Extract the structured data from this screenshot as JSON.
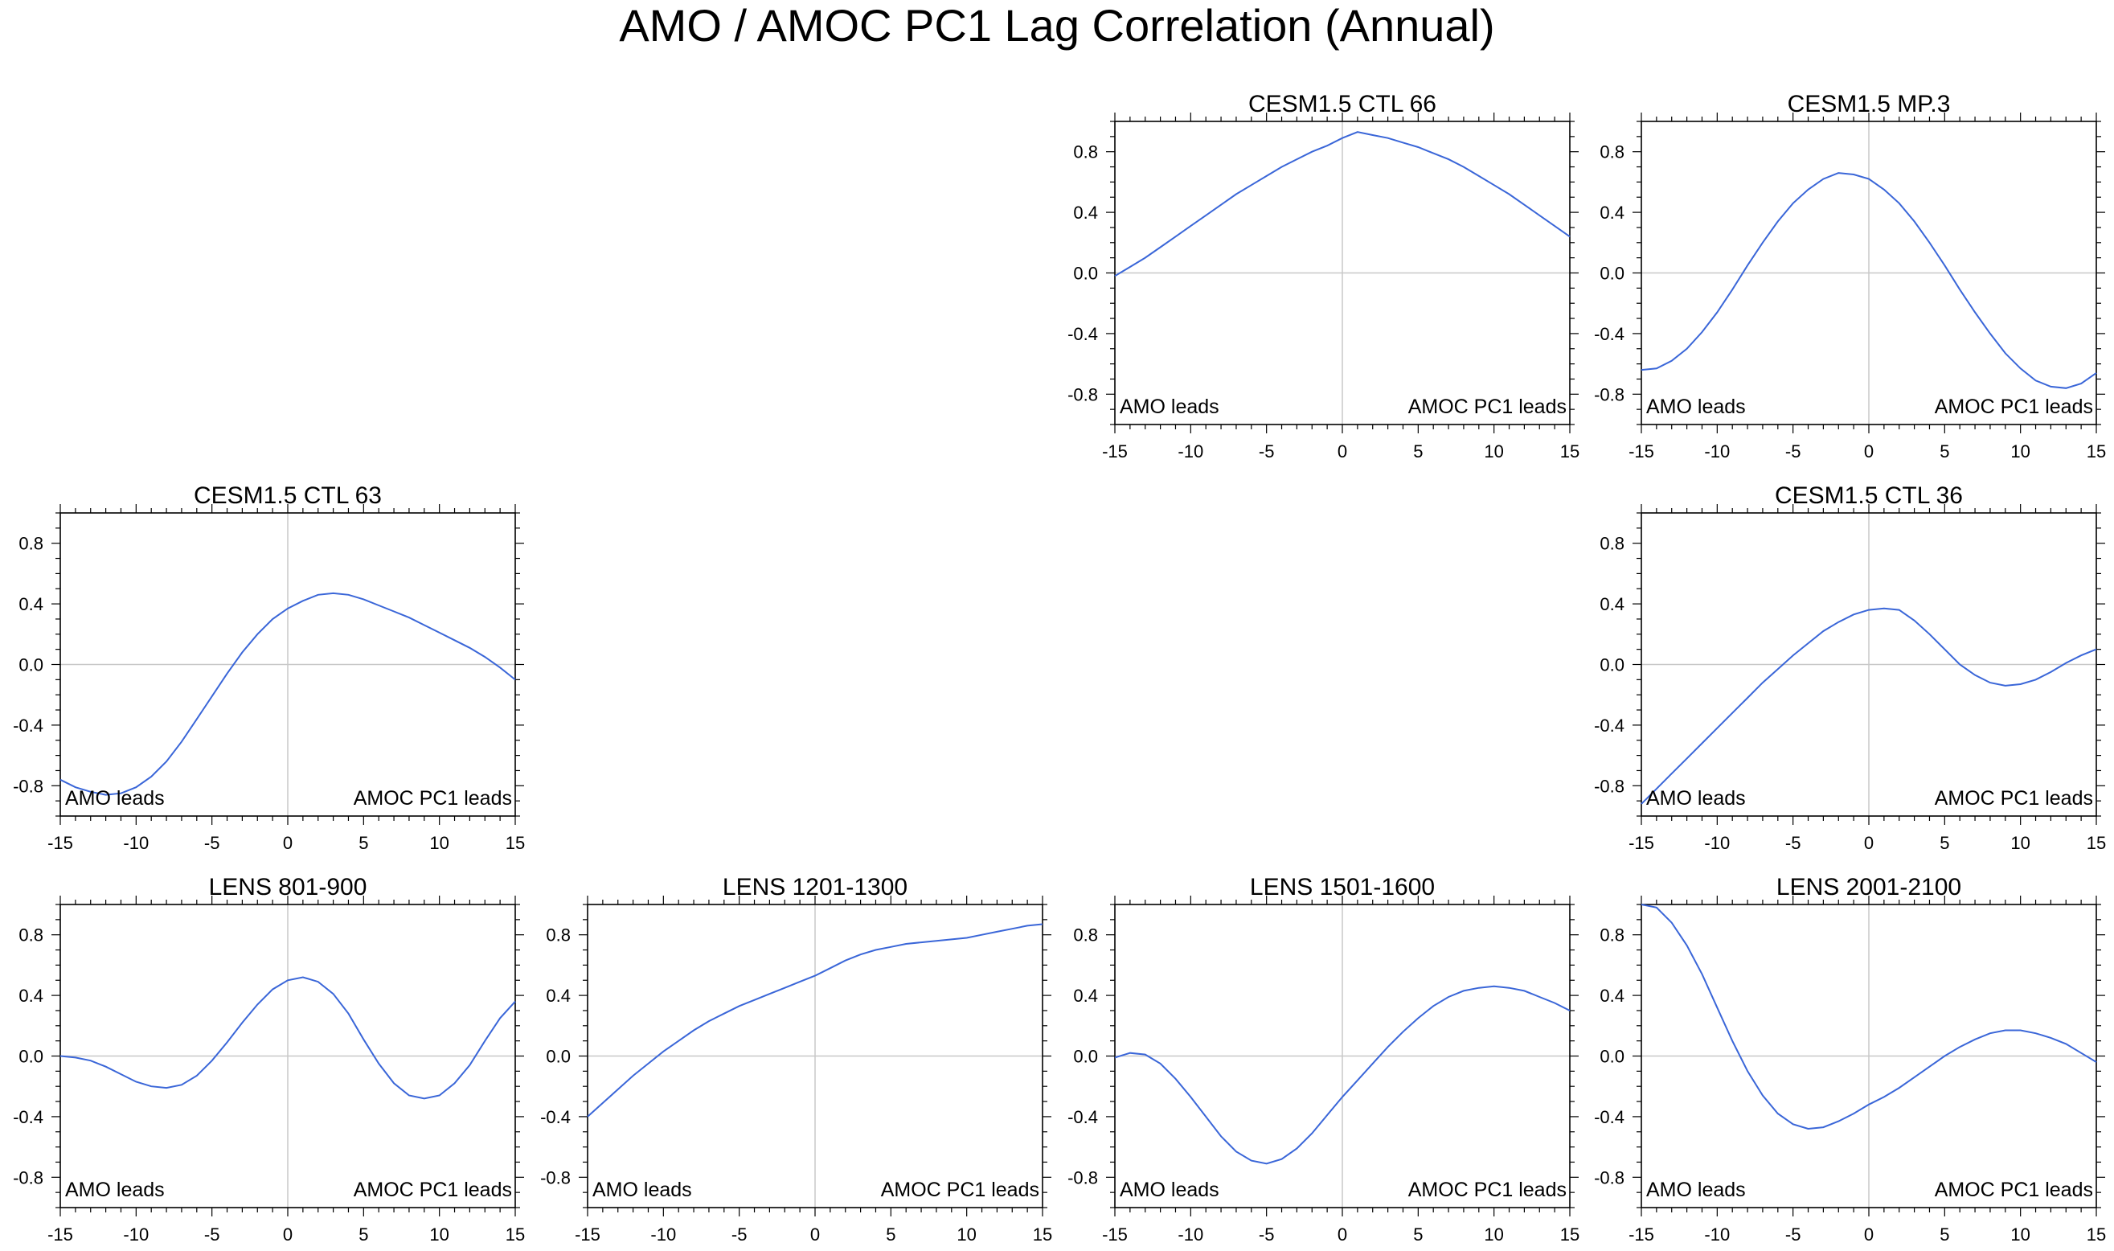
{
  "title": "AMO / AMOC PC1 Lag Correlation (Annual)",
  "chart_data": [
    {
      "type": "line",
      "title": "CESM1.5 CTL 66",
      "x": [
        -15,
        -14,
        -13,
        -12,
        -11,
        -10,
        -9,
        -8,
        -7,
        -6,
        -5,
        -4,
        -3,
        -2,
        -1,
        0,
        1,
        2,
        3,
        4,
        5,
        6,
        7,
        8,
        9,
        10,
        11,
        12,
        13,
        14,
        15
      ],
      "values": [
        -0.02,
        0.04,
        0.1,
        0.17,
        0.24,
        0.31,
        0.38,
        0.45,
        0.52,
        0.58,
        0.64,
        0.7,
        0.75,
        0.8,
        0.84,
        0.89,
        0.93,
        0.91,
        0.89,
        0.86,
        0.83,
        0.79,
        0.75,
        0.7,
        0.64,
        0.58,
        0.52,
        0.45,
        0.38,
        0.31,
        0.24
      ],
      "xlabel": "",
      "ylabel": "",
      "xlim": [
        -15,
        15
      ],
      "ylim": [
        -1.0,
        1.0
      ],
      "xticks": [
        "-15",
        "-10",
        "-5",
        "0",
        "5",
        "10",
        "15"
      ],
      "yticks": [
        "0.8",
        "0.4",
        "0.0",
        "-0.4",
        "-0.8"
      ],
      "left_annotation": "AMO leads",
      "right_annotation": "AMOC PC1 leads"
    },
    {
      "type": "line",
      "title": "CESM1.5 MP.3",
      "x": [
        -15,
        -14,
        -13,
        -12,
        -11,
        -10,
        -9,
        -8,
        -7,
        -6,
        -5,
        -4,
        -3,
        -2,
        -1,
        0,
        1,
        2,
        3,
        4,
        5,
        6,
        7,
        8,
        9,
        10,
        11,
        12,
        13,
        14,
        15
      ],
      "values": [
        -0.64,
        -0.63,
        -0.58,
        -0.5,
        -0.39,
        -0.26,
        -0.11,
        0.05,
        0.2,
        0.34,
        0.46,
        0.55,
        0.62,
        0.66,
        0.65,
        0.62,
        0.55,
        0.46,
        0.34,
        0.2,
        0.05,
        -0.11,
        -0.26,
        -0.4,
        -0.53,
        -0.63,
        -0.71,
        -0.75,
        -0.76,
        -0.73,
        -0.66
      ],
      "xlabel": "",
      "ylabel": "",
      "xlim": [
        -15,
        15
      ],
      "ylim": [
        -1.0,
        1.0
      ],
      "xticks": [
        "-15",
        "-10",
        "-5",
        "0",
        "5",
        "10",
        "15"
      ],
      "yticks": [
        "0.8",
        "0.4",
        "0.0",
        "-0.4",
        "-0.8"
      ],
      "left_annotation": "AMO leads",
      "right_annotation": "AMOC PC1 leads"
    },
    {
      "type": "line",
      "title": "CESM1.5 CTL 63",
      "x": [
        -15,
        -14,
        -13,
        -12,
        -11,
        -10,
        -9,
        -8,
        -7,
        -6,
        -5,
        -4,
        -3,
        -2,
        -1,
        0,
        1,
        2,
        3,
        4,
        5,
        6,
        7,
        8,
        9,
        10,
        11,
        12,
        13,
        14,
        15
      ],
      "values": [
        -0.76,
        -0.81,
        -0.84,
        -0.86,
        -0.85,
        -0.81,
        -0.74,
        -0.64,
        -0.51,
        -0.36,
        -0.21,
        -0.06,
        0.08,
        0.2,
        0.3,
        0.37,
        0.42,
        0.46,
        0.47,
        0.46,
        0.43,
        0.39,
        0.35,
        0.31,
        0.26,
        0.21,
        0.16,
        0.11,
        0.05,
        -0.02,
        -0.1
      ],
      "xlabel": "",
      "ylabel": "",
      "xlim": [
        -15,
        15
      ],
      "ylim": [
        -1.0,
        1.0
      ],
      "xticks": [
        "-15",
        "-10",
        "-5",
        "0",
        "5",
        "10",
        "15"
      ],
      "yticks": [
        "0.8",
        "0.4",
        "0.0",
        "-0.4",
        "-0.8"
      ],
      "left_annotation": "AMO leads",
      "right_annotation": "AMOC PC1 leads"
    },
    {
      "type": "line",
      "title": "CESM1.5 CTL 36",
      "x": [
        -15,
        -14,
        -13,
        -12,
        -11,
        -10,
        -9,
        -8,
        -7,
        -6,
        -5,
        -4,
        -3,
        -2,
        -1,
        0,
        1,
        2,
        3,
        4,
        5,
        6,
        7,
        8,
        9,
        10,
        11,
        12,
        13,
        14,
        15
      ],
      "values": [
        -0.92,
        -0.82,
        -0.72,
        -0.62,
        -0.52,
        -0.42,
        -0.32,
        -0.22,
        -0.12,
        -0.03,
        0.06,
        0.14,
        0.22,
        0.28,
        0.33,
        0.36,
        0.37,
        0.36,
        0.29,
        0.2,
        0.1,
        0.0,
        -0.07,
        -0.12,
        -0.14,
        -0.13,
        -0.1,
        -0.05,
        0.01,
        0.06,
        0.1
      ],
      "xlabel": "",
      "ylabel": "",
      "xlim": [
        -15,
        15
      ],
      "ylim": [
        -1.0,
        1.0
      ],
      "xticks": [
        "-15",
        "-10",
        "-5",
        "0",
        "5",
        "10",
        "15"
      ],
      "yticks": [
        "0.8",
        "0.4",
        "0.0",
        "-0.4",
        "-0.8"
      ],
      "left_annotation": "AMO leads",
      "right_annotation": "AMOC PC1 leads"
    },
    {
      "type": "line",
      "title": "LENS 801-900",
      "x": [
        -15,
        -14,
        -13,
        -12,
        -11,
        -10,
        -9,
        -8,
        -7,
        -6,
        -5,
        -4,
        -3,
        -2,
        -1,
        0,
        1,
        2,
        3,
        4,
        5,
        6,
        7,
        8,
        9,
        10,
        11,
        12,
        13,
        14,
        15
      ],
      "values": [
        0.0,
        -0.01,
        -0.03,
        -0.07,
        -0.12,
        -0.17,
        -0.2,
        -0.21,
        -0.19,
        -0.13,
        -0.03,
        0.09,
        0.22,
        0.34,
        0.44,
        0.5,
        0.52,
        0.49,
        0.41,
        0.28,
        0.11,
        -0.05,
        -0.18,
        -0.26,
        -0.28,
        -0.26,
        -0.18,
        -0.06,
        0.1,
        0.25,
        0.36
      ],
      "xlabel": "",
      "ylabel": "",
      "xlim": [
        -15,
        15
      ],
      "ylim": [
        -1.0,
        1.0
      ],
      "xticks": [
        "-15",
        "-10",
        "-5",
        "0",
        "5",
        "10",
        "15"
      ],
      "yticks": [
        "0.8",
        "0.4",
        "0.0",
        "-0.4",
        "-0.8"
      ],
      "left_annotation": "AMO leads",
      "right_annotation": "AMOC PC1 leads"
    },
    {
      "type": "line",
      "title": "LENS 1201-1300",
      "x": [
        -15,
        -14,
        -13,
        -12,
        -11,
        -10,
        -9,
        -8,
        -7,
        -6,
        -5,
        -4,
        -3,
        -2,
        -1,
        0,
        1,
        2,
        3,
        4,
        5,
        6,
        7,
        8,
        9,
        10,
        11,
        12,
        13,
        14,
        15
      ],
      "values": [
        -0.4,
        -0.31,
        -0.22,
        -0.13,
        -0.05,
        0.03,
        0.1,
        0.17,
        0.23,
        0.28,
        0.33,
        0.37,
        0.41,
        0.45,
        0.49,
        0.53,
        0.58,
        0.63,
        0.67,
        0.7,
        0.72,
        0.74,
        0.75,
        0.76,
        0.77,
        0.78,
        0.8,
        0.82,
        0.84,
        0.86,
        0.87
      ],
      "xlabel": "",
      "ylabel": "",
      "xlim": [
        -15,
        15
      ],
      "ylim": [
        -1.0,
        1.0
      ],
      "xticks": [
        "-15",
        "-10",
        "-5",
        "0",
        "5",
        "10",
        "15"
      ],
      "yticks": [
        "0.8",
        "0.4",
        "0.0",
        "-0.4",
        "-0.8"
      ],
      "left_annotation": "AMO leads",
      "right_annotation": "AMOC PC1 leads"
    },
    {
      "type": "line",
      "title": "LENS 1501-1600",
      "x": [
        -15,
        -14,
        -13,
        -12,
        -11,
        -10,
        -9,
        -8,
        -7,
        -6,
        -5,
        -4,
        -3,
        -2,
        -1,
        0,
        1,
        2,
        3,
        4,
        5,
        6,
        7,
        8,
        9,
        10,
        11,
        12,
        13,
        14,
        15
      ],
      "values": [
        -0.01,
        0.02,
        0.01,
        -0.05,
        -0.15,
        -0.27,
        -0.4,
        -0.53,
        -0.63,
        -0.69,
        -0.71,
        -0.68,
        -0.61,
        -0.51,
        -0.39,
        -0.27,
        -0.16,
        -0.05,
        0.06,
        0.16,
        0.25,
        0.33,
        0.39,
        0.43,
        0.45,
        0.46,
        0.45,
        0.43,
        0.39,
        0.35,
        0.3
      ],
      "xlabel": "",
      "ylabel": "",
      "xlim": [
        -15,
        15
      ],
      "ylim": [
        -1.0,
        1.0
      ],
      "xticks": [
        "-15",
        "-10",
        "-5",
        "0",
        "5",
        "10",
        "15"
      ],
      "yticks": [
        "0.8",
        "0.4",
        "0.0",
        "-0.4",
        "-0.8"
      ],
      "left_annotation": "AMO leads",
      "right_annotation": "AMOC PC1 leads"
    },
    {
      "type": "line",
      "title": "LENS 2001-2100",
      "x": [
        -15,
        -14,
        -13,
        -12,
        -11,
        -10,
        -9,
        -8,
        -7,
        -6,
        -5,
        -4,
        -3,
        -2,
        -1,
        0,
        1,
        2,
        3,
        4,
        5,
        6,
        7,
        8,
        9,
        10,
        11,
        12,
        13,
        14,
        15
      ],
      "values": [
        1.0,
        0.98,
        0.88,
        0.73,
        0.54,
        0.32,
        0.1,
        -0.1,
        -0.26,
        -0.38,
        -0.45,
        -0.48,
        -0.47,
        -0.43,
        -0.38,
        -0.32,
        -0.27,
        -0.21,
        -0.14,
        -0.07,
        0.0,
        0.06,
        0.11,
        0.15,
        0.17,
        0.17,
        0.15,
        0.12,
        0.08,
        0.02,
        -0.04
      ],
      "xlabel": "",
      "ylabel": "",
      "xlim": [
        -15,
        15
      ],
      "ylim": [
        -1.0,
        1.0
      ],
      "xticks": [
        "-15",
        "-10",
        "-5",
        "0",
        "5",
        "10",
        "15"
      ],
      "yticks": [
        "0.8",
        "0.4",
        "0.0",
        "-0.4",
        "-0.8"
      ],
      "left_annotation": "AMO leads",
      "right_annotation": "AMOC PC1 leads"
    }
  ]
}
